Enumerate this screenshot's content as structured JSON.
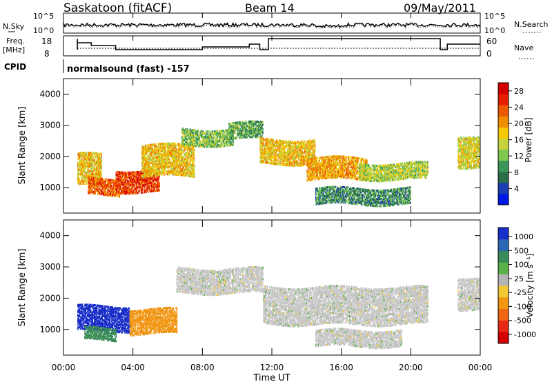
{
  "header": {
    "title": "Saskatoon (fitACF)",
    "beam": "Beam 14",
    "date": "09/May/2011"
  },
  "top_panel": {
    "left_label": "N.Sky",
    "right_label": "N.Search",
    "y_ticks_left": [
      "10^5",
      "10^0"
    ],
    "y_ticks_right": [
      "10^5",
      "10^0"
    ]
  },
  "freq_panel": {
    "left_label_1": "Freq.",
    "left_label_2": "[MHz]",
    "right_label": "Nave",
    "y_ticks_left": [
      "18",
      "8"
    ],
    "y_ticks_right": [
      "60",
      "0"
    ]
  },
  "cpid": {
    "label": "CPID",
    "value": "normalsound (fast) -157"
  },
  "colors": {
    "power_scale": [
      "#0019e6",
      "#1e3cb4",
      "#2a6e4a",
      "#3c965a",
      "#7ec850",
      "#c8d23c",
      "#f5c800",
      "#f08c00",
      "#ec5a00",
      "#e61e00",
      "#d20000"
    ],
    "velocity_scale": [
      "#1a2ec8",
      "#2a68b4",
      "#3a8a5a",
      "#5ab04a",
      "#b4b4b4",
      "#f0c832",
      "#f09614",
      "#f06414",
      "#e62814",
      "#d20000"
    ],
    "gray": "#c8c8c8"
  },
  "chart_data": [
    {
      "type": "heatmap",
      "title": "Power",
      "xlabel": "Time UT",
      "ylabel": "Slant Range [km]",
      "x_tick_labels": [
        "00:00",
        "04:00",
        "08:00",
        "12:00",
        "16:00",
        "20:00",
        "00:00"
      ],
      "x_range_hours": [
        0,
        24
      ],
      "y_ticks": [
        "1000",
        "2000",
        "3000",
        "4000"
      ],
      "y_range_km": [
        180,
        4500
      ],
      "colorbar": {
        "label": "Power [dB]",
        "ticks": [
          "4",
          "8",
          "12",
          "16",
          "20",
          "24",
          "28"
        ],
        "range": [
          0,
          30
        ]
      },
      "echo_bands": [
        {
          "t": [
            0.8,
            2.2
          ],
          "r": [
            1100,
            2100
          ],
          "power": 18
        },
        {
          "t": [
            1.4,
            3.2
          ],
          "r": [
            800,
            1300
          ],
          "power": 24
        },
        {
          "t": [
            3.0,
            5.5
          ],
          "r": [
            900,
            1600
          ],
          "power": 26
        },
        {
          "t": [
            4.5,
            7.5
          ],
          "r": [
            1400,
            2400
          ],
          "power": 18
        },
        {
          "t": [
            6.8,
            9.8
          ],
          "r": [
            2400,
            2900
          ],
          "power": 12
        },
        {
          "t": [
            9.5,
            11.5
          ],
          "r": [
            2600,
            3100
          ],
          "power": 10
        },
        {
          "t": [
            11.3,
            14.5
          ],
          "r": [
            1800,
            2600
          ],
          "power": 18
        },
        {
          "t": [
            14.0,
            17.5
          ],
          "r": [
            1300,
            2000
          ],
          "power": 20
        },
        {
          "t": [
            17.0,
            21.0
          ],
          "r": [
            1300,
            1800
          ],
          "power": 14
        },
        {
          "t": [
            14.5,
            20.0
          ],
          "r": [
            500,
            1000
          ],
          "power": 8
        },
        {
          "t": [
            22.7,
            24.0
          ],
          "r": [
            1700,
            2700
          ],
          "power": 16
        }
      ]
    },
    {
      "type": "heatmap",
      "title": "Velocity",
      "xlabel": "Time UT",
      "ylabel": "Slant Range [km]",
      "x_tick_labels": [
        "00:00",
        "04:00",
        "08:00",
        "12:00",
        "16:00",
        "20:00",
        "00:00"
      ],
      "x_range_hours": [
        0,
        24
      ],
      "y_ticks": [
        "1000",
        "2000",
        "3000",
        "4000"
      ],
      "y_range_km": [
        180,
        4500
      ],
      "colorbar": {
        "label": "Velocity [m s⁻¹]",
        "ticks": [
          "1000",
          "500",
          "100",
          "25",
          "-25",
          "-100",
          "-500",
          "-1000"
        ]
      },
      "echo_bands": [
        {
          "t": [
            0.8,
            3.8
          ],
          "r": [
            1000,
            1800
          ],
          "velocity": 800
        },
        {
          "t": [
            1.2,
            3.0
          ],
          "r": [
            700,
            1100
          ],
          "velocity": 150
        },
        {
          "t": [
            3.8,
            6.5
          ],
          "r": [
            900,
            1700
          ],
          "velocity": -200
        },
        {
          "t": [
            6.5,
            11.5
          ],
          "r": [
            2200,
            3000
          ],
          "velocity": 0
        },
        {
          "t": [
            11.5,
            21.0
          ],
          "r": [
            1200,
            2400
          ],
          "velocity": 0
        },
        {
          "t": [
            14.5,
            19.5
          ],
          "r": [
            500,
            1000
          ],
          "velocity": 0
        },
        {
          "t": [
            22.7,
            24.0
          ],
          "r": [
            1700,
            2700
          ],
          "velocity": 0
        }
      ]
    }
  ]
}
